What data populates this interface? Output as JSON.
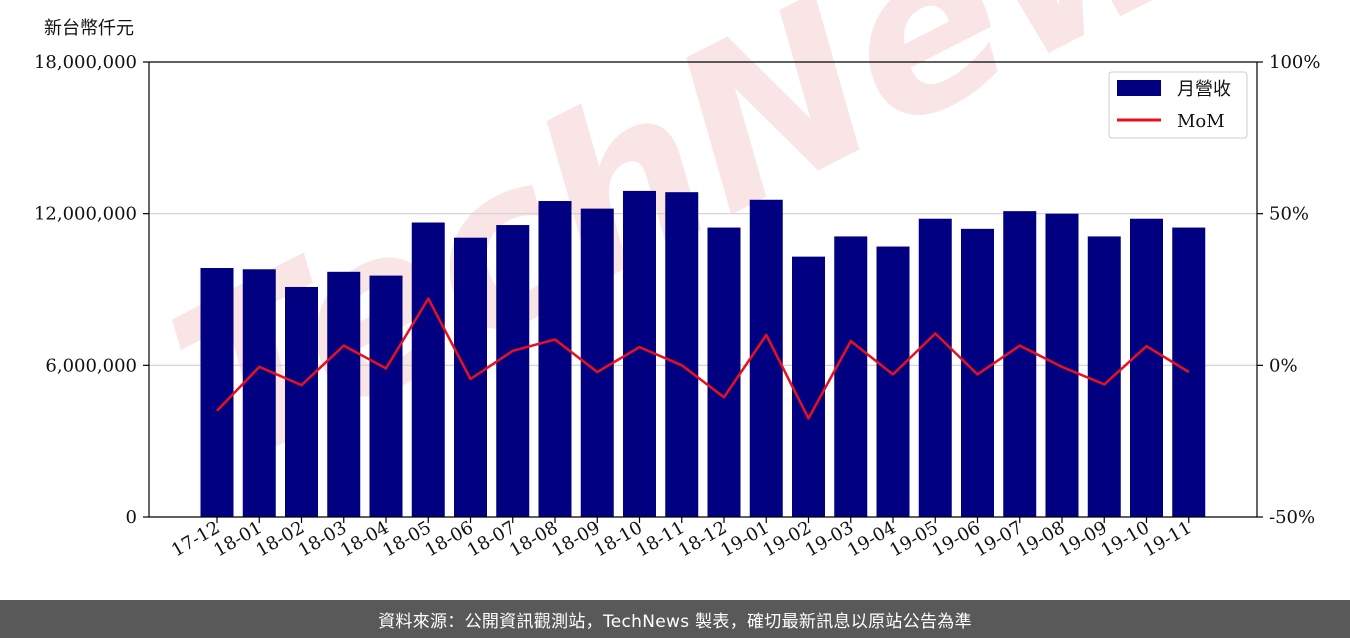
{
  "chart_data": {
    "type": "bar",
    "y_axis_label": "新台幣仟元",
    "categories": [
      "17-12",
      "18-01",
      "18-02",
      "18-03",
      "18-04",
      "18-05",
      "18-06",
      "18-07",
      "18-08",
      "18-09",
      "18-10",
      "18-11",
      "18-12",
      "19-01",
      "19-02",
      "19-03",
      "19-04",
      "19-05",
      "19-06",
      "19-07",
      "19-08",
      "19-09",
      "19-10",
      "19-11"
    ],
    "series": [
      {
        "name": "月營收",
        "axis": "left",
        "color": "#000080",
        "values": [
          9850000,
          9800000,
          9100000,
          9700000,
          9550000,
          11650000,
          11050000,
          11550000,
          12500000,
          12200000,
          12900000,
          12850000,
          11450000,
          12550000,
          10300000,
          11100000,
          10700000,
          11800000,
          11400000,
          12100000,
          12000000,
          11100000,
          11800000,
          11450000
        ]
      },
      {
        "name": "MoM",
        "axis": "right",
        "color": "#e8101e",
        "values": [
          -15,
          -0.5,
          -6.5,
          6.5,
          -1,
          22,
          -4.5,
          4.8,
          8.5,
          -2.2,
          6,
          0,
          -10.5,
          10,
          -17.5,
          8,
          -3,
          10.5,
          -3,
          6.5,
          -0.5,
          -6.3,
          6.3,
          -2.2
        ]
      }
    ],
    "ylim_left": [
      0,
      18000000
    ],
    "yticks_left": [
      {
        "value": 0,
        "label": "0"
      },
      {
        "value": 6000000,
        "label": "6,000,000"
      },
      {
        "value": 12000000,
        "label": "12,000,000"
      },
      {
        "value": 18000000,
        "label": "18,000,000"
      }
    ],
    "ylim_right": [
      -50,
      100
    ],
    "yticks_right": [
      {
        "value": -50,
        "label": "-50%"
      },
      {
        "value": 0,
        "label": "0%"
      },
      {
        "value": 50,
        "label": "50%"
      },
      {
        "value": 100,
        "label": "100%"
      }
    ],
    "grid": "horizontal",
    "legend": "top-right"
  },
  "footer": {
    "text": "資料來源：公開資訊觀測站，TechNews 製表，確切最新訊息以原站公告為準"
  },
  "watermark": {
    "text": "TechNews",
    "color": "#f2c6c6"
  }
}
